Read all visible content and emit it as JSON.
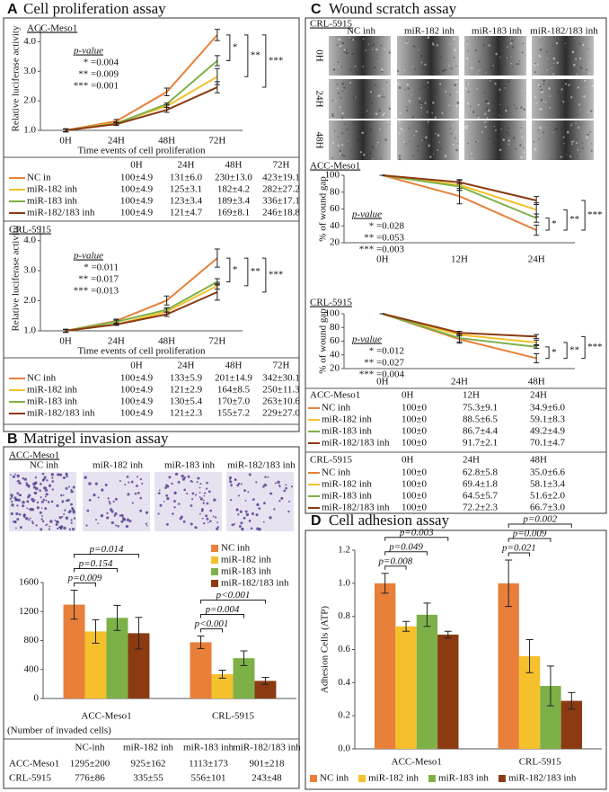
{
  "panels": [
    {
      "letter": "A",
      "title": "Cell proliferation assay"
    },
    {
      "letter": "B",
      "title": "Matrigel invasion assay"
    },
    {
      "letter": "C",
      "title": "Wound scratch assay"
    },
    {
      "letter": "D",
      "title": "Cell adhesion assay"
    }
  ],
  "image_grids": [
    {
      "title": "ACC-Meso1",
      "columns": [
        "NC inh",
        "miR-182 inh",
        "miR-183 inh",
        "miR-182/183 inh"
      ]
    },
    {
      "title": "CRL-5915",
      "columns": [
        "NC inh",
        "miR-182 inh",
        "miR-183 inh",
        "miR-182/183 inh"
      ],
      "rows": [
        "0H",
        "24H",
        "48H"
      ]
    }
  ],
  "chart_data": [
    {
      "type": "line",
      "title": "ACC-Meso1",
      "y_label": "Relative luciferase activity",
      "x_label": "Time events of cell proliferation",
      "categories": [
        "0H",
        "24H",
        "48H",
        "72H"
      ],
      "series": [
        {
          "color": "#e8803a",
          "values": [
            1.0,
            1.31,
            2.3,
            4.23
          ],
          "errors": [
            0.049,
            0.06,
            0.13,
            0.191
          ]
        },
        {
          "color": "#f5c02c",
          "values": [
            1.0,
            1.25,
            1.82,
            2.82
          ],
          "errors": [
            0.049,
            0.031,
            0.042,
            0.272
          ]
        },
        {
          "color": "#7db148",
          "values": [
            1.0,
            1.23,
            1.89,
            3.36
          ],
          "errors": [
            0.049,
            0.034,
            0.034,
            0.171
          ]
        },
        {
          "color": "#8b3a12",
          "values": [
            1.0,
            1.21,
            1.69,
            2.46
          ],
          "errors": [
            0.049,
            0.047,
            0.081,
            0.188
          ]
        }
      ],
      "ylim": [
        1,
        4.5
      ],
      "yticks": [
        {
          "value": 1,
          "label": "1.0"
        },
        {
          "value": 2,
          "label": "2.0"
        },
        {
          "value": 3,
          "label": "3.0"
        },
        {
          "value": 4,
          "label": "4.0"
        }
      ],
      "p_label": "p-value",
      "p_values": [
        "* =0.004",
        "** =0.009",
        "*** =0.001"
      ],
      "brackets": [
        "*",
        "**",
        "***"
      ]
    },
    {
      "type": "line",
      "title": "CRL-5915",
      "y_label": "Relative luciferase activity",
      "x_label": "Time events of cell proliferation",
      "categories": [
        "0H",
        "24H",
        "48H",
        "72H"
      ],
      "series": [
        {
          "color": "#e8803a",
          "values": [
            1.0,
            1.33,
            2.01,
            3.42
          ],
          "errors": [
            0.049,
            0.059,
            0.149,
            0.301
          ]
        },
        {
          "color": "#f5c02c",
          "values": [
            1.0,
            1.21,
            1.64,
            2.5
          ],
          "errors": [
            0.049,
            0.029,
            0.085,
            0.113
          ]
        },
        {
          "color": "#7db148",
          "values": [
            1.0,
            1.3,
            1.7,
            2.63
          ],
          "errors": [
            0.049,
            0.054,
            0.07,
            0.106
          ]
        },
        {
          "color": "#8b3a12",
          "values": [
            1.0,
            1.21,
            1.55,
            2.29
          ],
          "errors": [
            0.049,
            0.023,
            0.072,
            0.27
          ]
        }
      ],
      "ylim": [
        1,
        4.5
      ],
      "yticks": [
        {
          "value": 1,
          "label": "1.0"
        },
        {
          "value": 2,
          "label": "2.0"
        },
        {
          "value": 3,
          "label": "3.0"
        },
        {
          "value": 4,
          "label": "4.0"
        }
      ],
      "p_label": "p-value",
      "p_values": [
        "* =0.011",
        "** =0.017",
        "*** =0.013"
      ],
      "brackets": [
        "*",
        "**",
        "***"
      ]
    },
    {
      "type": "bar",
      "categories": [
        "ACC-Meso1",
        "CRL-5915"
      ],
      "series": [
        {
          "name": "NC inh",
          "color": "#e8803a",
          "values": [
            1295,
            776
          ],
          "errors": [
            200,
            86
          ]
        },
        {
          "name": "miR-182 inh",
          "color": "#f5c02c",
          "values": [
            925,
            335
          ],
          "errors": [
            162,
            55
          ]
        },
        {
          "name": "miR-183 inh",
          "color": "#7db148",
          "values": [
            1113,
            556
          ],
          "errors": [
            173,
            101
          ]
        },
        {
          "name": "miR-182/183 inh",
          "color": "#8b3a12",
          "values": [
            901,
            243
          ],
          "errors": [
            218,
            48
          ]
        }
      ],
      "ylim": [
        0,
        1600
      ],
      "yticks": [
        0,
        400,
        800,
        1200,
        1600
      ],
      "legend": "upper right",
      "p_values": [
        [
          "p=0.009",
          "p=0.154",
          "p=0.014"
        ],
        [
          "p<0.001",
          "p=0.004",
          "p<0.001"
        ]
      ]
    },
    {
      "type": "line",
      "title": "ACC-Meso1",
      "y_label": "% of wound gap",
      "categories": [
        "0H",
        "12H",
        "24H"
      ],
      "series": [
        {
          "color": "#e8803a",
          "values": [
            100,
            75.3,
            34.9
          ],
          "errors": [
            0,
            9.1,
            6.0
          ]
        },
        {
          "color": "#f5c02c",
          "values": [
            100,
            88.5,
            59.1
          ],
          "errors": [
            0,
            6.5,
            8.3
          ]
        },
        {
          "color": "#7db148",
          "values": [
            100,
            86.7,
            49.2
          ],
          "errors": [
            0,
            4.4,
            4.9
          ]
        },
        {
          "color": "#8b3a12",
          "values": [
            100,
            91.7,
            70.1
          ],
          "errors": [
            0,
            2.1,
            4.7
          ]
        }
      ],
      "ylim": [
        20,
        100
      ],
      "yticks": [
        20,
        40,
        60,
        80,
        100
      ],
      "p_label": "p-value",
      "p_values": [
        "* =0.028",
        "** =0.053",
        "*** =0.003"
      ],
      "brackets": [
        "*",
        "**",
        "***"
      ]
    },
    {
      "type": "line",
      "title": "CRL-5915",
      "y_label": "% of wound gap",
      "categories": [
        "0H",
        "24H",
        "48H"
      ],
      "series": [
        {
          "color": "#e8803a",
          "values": [
            100,
            62.8,
            35.0
          ],
          "errors": [
            0,
            5.8,
            6.6
          ]
        },
        {
          "color": "#f5c02c",
          "values": [
            100,
            69.4,
            58.1
          ],
          "errors": [
            0,
            1.8,
            3.4
          ]
        },
        {
          "color": "#7db148",
          "values": [
            100,
            64.5,
            51.6
          ],
          "errors": [
            0,
            5.7,
            2.0
          ]
        },
        {
          "color": "#8b3a12",
          "values": [
            100,
            72.2,
            66.7
          ],
          "errors": [
            0,
            2.3,
            3.0
          ]
        }
      ],
      "ylim": [
        20,
        100
      ],
      "yticks": [
        20,
        40,
        60,
        80,
        100
      ],
      "p_label": "p-value",
      "p_values": [
        "* =0.012",
        "** =0.027",
        "*** =0.004"
      ],
      "brackets": [
        "*",
        "**",
        "***"
      ]
    },
    {
      "type": "bar",
      "y_label": "Adhesion Cells (ATP)",
      "categories": [
        "ACC-Meso1",
        "CRL-5915"
      ],
      "series": [
        {
          "name": "NC inh",
          "color": "#e8803a",
          "values": [
            1.0,
            1.0
          ],
          "errors": [
            0.06,
            0.14
          ]
        },
        {
          "name": "miR-182 inh",
          "color": "#f5c02c",
          "values": [
            0.74,
            0.56
          ],
          "errors": [
            0.03,
            0.1
          ]
        },
        {
          "name": "miR-183 inh",
          "color": "#7db148",
          "values": [
            0.81,
            0.38
          ],
          "errors": [
            0.07,
            0.12
          ]
        },
        {
          "name": "miR-182/183 inh",
          "color": "#8b3a12",
          "values": [
            0.69,
            0.29
          ],
          "errors": [
            0.02,
            0.05
          ]
        }
      ],
      "ylim": [
        0,
        1.2
      ],
      "yticks": [
        {
          "value": 0,
          "label": "0.0"
        },
        {
          "value": 0.2,
          "label": "0.2"
        },
        {
          "value": 0.4,
          "label": "0.4"
        },
        {
          "value": 0.6,
          "label": "0.6"
        },
        {
          "value": 0.8,
          "label": "0.8"
        },
        {
          "value": 1,
          "label": "1.0"
        },
        {
          "value": 1.2,
          "label": "1.2"
        }
      ],
      "legend": "bottom",
      "p_values": [
        [
          "p=0.008",
          "p=0.049",
          "p=0.003"
        ],
        [
          "p=0.021",
          "p=0.009",
          "p=0.002"
        ]
      ]
    }
  ],
  "tables": [
    {
      "header": [
        null,
        "0H",
        "24H",
        "48H",
        "72H"
      ],
      "rows": [
        [
          "NC in",
          "100±4.9",
          "131±6.0",
          "230±13.0",
          "423±19.1"
        ],
        [
          "miR-182 inh",
          "100±4.9",
          "125±3.1",
          "182±4.2",
          "282±27.2"
        ],
        [
          "miR-183 inh",
          "100±4.9",
          "123±3.4",
          "189±3.4",
          "336±17.1"
        ],
        [
          "miR-182/183 inh",
          "100±4.9",
          "121±4.7",
          "169±8.1",
          "246±18.8"
        ]
      ]
    },
    {
      "header": [
        null,
        "0H",
        "24H",
        "48H",
        "72H"
      ],
      "rows": [
        [
          "NC inh",
          "100±4.9",
          "133±5.9",
          "201±14.9",
          "342±30.1"
        ],
        [
          "miR-182 inh",
          "100±4.9",
          "121±2.9",
          "164±8.5",
          "250±11.3"
        ],
        [
          "miR-183 inh",
          "100±4.9",
          "130±5.4",
          "170±7.0",
          "263±10.6"
        ],
        [
          "miR-182/183 inh",
          "100±4.9",
          "121±2.3",
          "155±7.2",
          "229±27.0"
        ]
      ]
    },
    {
      "caption": "(Number of invaded cells)",
      "header": [
        null,
        "NC-inh",
        "miR-182 inh",
        "miR-183 inh",
        "miR-182/183 inh"
      ],
      "rows": [
        [
          "ACC-Meso1",
          "1295±200",
          "925±162",
          "1113±173",
          "901±218"
        ],
        [
          "CRL-5915",
          "776±86",
          "335±55",
          "556±101",
          "243±48"
        ]
      ]
    },
    {
      "header": [
        "ACC-Meso1",
        "0H",
        "12H",
        "24H"
      ],
      "rows": [
        [
          "NC inh",
          "100±0",
          "75.3±9.1",
          "34.9±6.0"
        ],
        [
          "miR-182 inh",
          "100±0",
          "88.5±6.5",
          "59.1±8.3"
        ],
        [
          "miR-183 inh",
          "100±0",
          "86.7±4.4",
          "49.2±4.9"
        ],
        [
          "miR-182/183 inh",
          "100±0",
          "91.7±2.1",
          "70.1±4.7"
        ]
      ]
    },
    {
      "header": [
        "CRL-5915",
        "0H",
        "24H",
        "48H"
      ],
      "rows": [
        [
          "NC inh",
          "100±0",
          "62.8±5.8",
          "35.0±6.6"
        ],
        [
          "miR-182 inh",
          "100±0",
          "69.4±1.8",
          "58.1±3.4"
        ],
        [
          "miR-183 inh",
          "100±0",
          "64.5±5.7",
          "51.6±2.0"
        ],
        [
          "miR-182/183 inh",
          "100±0",
          "72.2±2.3",
          "66.7±3.0"
        ]
      ]
    }
  ]
}
